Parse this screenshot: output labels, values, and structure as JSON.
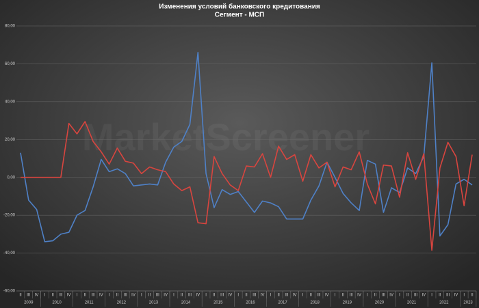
{
  "chart_data": {
    "type": "line",
    "title": "Изменения условий банковского кредитования",
    "subtitle": "Сегмент - МСП",
    "watermark": "MarketScreener",
    "categories": [
      {
        "year": "2009",
        "quarter": "II"
      },
      {
        "year": "2009",
        "quarter": "III"
      },
      {
        "year": "2009",
        "quarter": "IV"
      },
      {
        "year": "2010",
        "quarter": "I"
      },
      {
        "year": "2010",
        "quarter": "II"
      },
      {
        "year": "2010",
        "quarter": "III"
      },
      {
        "year": "2010",
        "quarter": "IV"
      },
      {
        "year": "2011",
        "quarter": "I"
      },
      {
        "year": "2011",
        "quarter": "II"
      },
      {
        "year": "2011",
        "quarter": "III"
      },
      {
        "year": "2011",
        "quarter": "IV"
      },
      {
        "year": "2012",
        "quarter": "I"
      },
      {
        "year": "2012",
        "quarter": "II"
      },
      {
        "year": "2012",
        "quarter": "III"
      },
      {
        "year": "2012",
        "quarter": "IV"
      },
      {
        "year": "2013",
        "quarter": "I"
      },
      {
        "year": "2013",
        "quarter": "II"
      },
      {
        "year": "2013",
        "quarter": "III"
      },
      {
        "year": "2013",
        "quarter": "IV"
      },
      {
        "year": "2014",
        "quarter": "I"
      },
      {
        "year": "2014",
        "quarter": "II"
      },
      {
        "year": "2014",
        "quarter": "III"
      },
      {
        "year": "2014",
        "quarter": "IV"
      },
      {
        "year": "2015",
        "quarter": "I"
      },
      {
        "year": "2015",
        "quarter": "II"
      },
      {
        "year": "2015",
        "quarter": "III"
      },
      {
        "year": "2015",
        "quarter": "IV"
      },
      {
        "year": "2016",
        "quarter": "I"
      },
      {
        "year": "2016",
        "quarter": "II"
      },
      {
        "year": "2016",
        "quarter": "III"
      },
      {
        "year": "2016",
        "quarter": "IV"
      },
      {
        "year": "2017",
        "quarter": "I"
      },
      {
        "year": "2017",
        "quarter": "II"
      },
      {
        "year": "2017",
        "quarter": "III"
      },
      {
        "year": "2017",
        "quarter": "IV"
      },
      {
        "year": "2018",
        "quarter": "I"
      },
      {
        "year": "2018",
        "quarter": "II"
      },
      {
        "year": "2018",
        "quarter": "III"
      },
      {
        "year": "2018",
        "quarter": "IV"
      },
      {
        "year": "2019",
        "quarter": "I"
      },
      {
        "year": "2019",
        "quarter": "II"
      },
      {
        "year": "2019",
        "quarter": "III"
      },
      {
        "year": "2019",
        "quarter": "IV"
      },
      {
        "year": "2020",
        "quarter": "I"
      },
      {
        "year": "2020",
        "quarter": "II"
      },
      {
        "year": "2020",
        "quarter": "III"
      },
      {
        "year": "2020",
        "quarter": "IV"
      },
      {
        "year": "2021",
        "quarter": "I"
      },
      {
        "year": "2021",
        "quarter": "II"
      },
      {
        "year": "2021",
        "quarter": "III"
      },
      {
        "year": "2021",
        "quarter": "IV"
      },
      {
        "year": "2022",
        "quarter": "I"
      },
      {
        "year": "2022",
        "quarter": "II"
      },
      {
        "year": "2022",
        "quarter": "III"
      },
      {
        "year": "2022",
        "quarter": "IV"
      },
      {
        "year": "2023",
        "quarter": "I"
      },
      {
        "year": "2023",
        "quarter": "II"
      }
    ],
    "series": [
      {
        "color": "#4f81c7",
        "values": [
          13,
          -12,
          -17,
          -34,
          -33.5,
          -30,
          -29,
          -20,
          -17.5,
          -5,
          9.5,
          3,
          4.5,
          2,
          -4.5,
          -4,
          -3.5,
          -4,
          8,
          16,
          19,
          28,
          66,
          2,
          -16,
          -6.5,
          -9,
          -7.5,
          -13,
          -18.5,
          -12.5,
          -13.5,
          -15.5,
          -22,
          -22,
          -22,
          -12,
          -4.5,
          8,
          0,
          -8.5,
          -13.5,
          -17.5,
          9,
          7,
          -18.5,
          -5.5,
          -8,
          5,
          2,
          11,
          60.5,
          -31,
          -25,
          -3.5,
          -1,
          -4
        ]
      },
      {
        "color": "#d9453f",
        "values": [
          0,
          0,
          0,
          0,
          0,
          0,
          28.5,
          23,
          29.5,
          19,
          13.5,
          7,
          15.5,
          8.5,
          7.5,
          2,
          5.5,
          4,
          3,
          -3.5,
          -7,
          -5,
          -24,
          -24.5,
          11,
          2,
          -4,
          -7,
          6,
          5.5,
          12.5,
          0,
          16.5,
          9.5,
          12,
          -2,
          12,
          5,
          8,
          -5,
          5.5,
          4,
          13.5,
          -3.5,
          -14,
          6.5,
          6,
          -10.5,
          13,
          -1,
          12.5,
          -38.5,
          5,
          18.5,
          11,
          -15,
          12
        ]
      }
    ],
    "ylim": [
      -60,
      80
    ],
    "yticks": [
      {
        "value": -60,
        "label": "-60,00"
      },
      {
        "value": -40,
        "label": "-40,00"
      },
      {
        "value": -20,
        "label": "-20,00"
      },
      {
        "value": 0,
        "label": "0,00"
      },
      {
        "value": 20,
        "label": "20,00"
      },
      {
        "value": 40,
        "label": "40,00"
      },
      {
        "value": 60,
        "label": "60,00"
      },
      {
        "value": 80,
        "label": "80,00"
      }
    ],
    "grid": true
  }
}
